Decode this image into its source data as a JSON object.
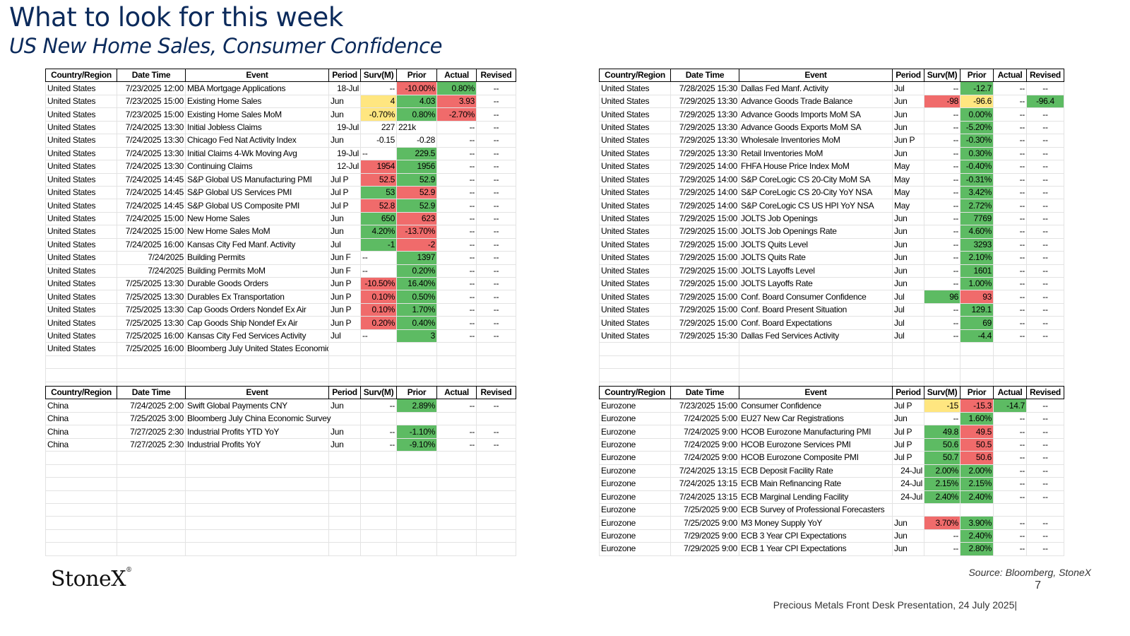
{
  "header": {
    "title": "What to look for this week",
    "subtitle": "US New Home Sales, Consumer Confidence"
  },
  "columns": [
    "Country/Region",
    "Date Time",
    "Event",
    "Period",
    "Surv(M)",
    "Prior",
    "Actual",
    "Revised"
  ],
  "colors": {
    "green": "#5dbb63",
    "red": "#f06b6b",
    "yellow": "#ffe680",
    "title": "#0b2a5b"
  },
  "tables": [
    {
      "id": "us-left",
      "rows": [
        {
          "country": "United States",
          "datetime": "7/23/2025 12:00",
          "event": "MBA Mortgage Applications",
          "period": "18-Jul",
          "periodAlign": "r",
          "surv": "--",
          "prior": "-10.00%",
          "actual": "0.80%",
          "revised": "--",
          "priorColor": "red",
          "actualColor": "green"
        },
        {
          "country": "United States",
          "datetime": "7/23/2025 15:00",
          "event": "Existing Home Sales",
          "period": "Jun",
          "surv": "4",
          "prior": "4.03",
          "actual": "3.93",
          "revised": "--",
          "survColor": "yellow",
          "priorColor": "green",
          "actualColor": "red"
        },
        {
          "country": "United States",
          "datetime": "7/23/2025 15:00",
          "event": "Existing Home Sales MoM",
          "period": "Jun",
          "surv": "-0.70%",
          "prior": "0.80%",
          "actual": "-2.70%",
          "revised": "--",
          "survColor": "yellow",
          "priorColor": "green",
          "actualColor": "red"
        },
        {
          "country": "United States",
          "datetime": "7/24/2025 13:30",
          "event": "Initial Jobless Claims",
          "period": "19-Jul",
          "periodAlign": "r",
          "surv": "227",
          "prior": "221k",
          "priorAlign": "l",
          "actual": "--",
          "revised": "--"
        },
        {
          "country": "United States",
          "datetime": "7/24/2025 13:30",
          "event": "Chicago Fed Nat Activity Index",
          "period": "Jun",
          "surv": "-0.15",
          "prior": "-0.28",
          "actual": "--",
          "revised": "--"
        },
        {
          "country": "United States",
          "datetime": "7/24/2025 13:30",
          "event": "Initial Claims 4-Wk Moving Avg",
          "period": "19-Jul",
          "periodAlign": "r",
          "surv": "--",
          "survAlign": "l",
          "prior": "229.5",
          "actual": "--",
          "revised": "--",
          "priorColor": "green"
        },
        {
          "country": "United States",
          "datetime": "7/24/2025 13:30",
          "event": "Continuing Claims",
          "period": "12-Jul",
          "periodAlign": "r",
          "surv": "1954",
          "prior": "1956",
          "actual": "--",
          "revised": "--",
          "survColor": "red",
          "priorColor": "green"
        },
        {
          "country": "United States",
          "datetime": "7/24/2025 14:45",
          "event": "S&P Global US Manufacturing PMI",
          "period": "Jul P",
          "surv": "52.5",
          "prior": "52.9",
          "actual": "--",
          "revised": "--",
          "survColor": "red",
          "priorColor": "green"
        },
        {
          "country": "United States",
          "datetime": "7/24/2025 14:45",
          "event": "S&P Global US Services PMI",
          "period": "Jul P",
          "surv": "53",
          "prior": "52.9",
          "actual": "--",
          "revised": "--",
          "survColor": "green",
          "priorColor": "red"
        },
        {
          "country": "United States",
          "datetime": "7/24/2025 14:45",
          "event": "S&P Global US Composite PMI",
          "period": "Jul P",
          "surv": "52.8",
          "prior": "52.9",
          "actual": "--",
          "revised": "--",
          "survColor": "red",
          "priorColor": "green"
        },
        {
          "country": "United States",
          "datetime": "7/24/2025 15:00",
          "event": "New Home Sales",
          "period": "Jun",
          "surv": "650",
          "prior": "623",
          "actual": "--",
          "revised": "--",
          "survColor": "green",
          "priorColor": "red"
        },
        {
          "country": "United States",
          "datetime": "7/24/2025 15:00",
          "event": "New Home Sales MoM",
          "period": "Jun",
          "surv": "4.20%",
          "prior": "-13.70%",
          "actual": "--",
          "revised": "--",
          "survColor": "green",
          "priorColor": "red"
        },
        {
          "country": "United States",
          "datetime": "7/24/2025 16:00",
          "event": "Kansas City Fed Manf. Activity",
          "period": "Jul",
          "surv": "-1",
          "prior": "-2",
          "actual": "--",
          "revised": "--",
          "survColor": "green",
          "priorColor": "red"
        },
        {
          "country": "United States",
          "datetime": "7/24/2025",
          "event": "Building Permits",
          "period": "Jun F",
          "surv": "--",
          "survAlign": "l",
          "prior": "1397",
          "actual": "--",
          "revised": "--",
          "priorColor": "green"
        },
        {
          "country": "United States",
          "datetime": "7/24/2025",
          "event": "Building Permits MoM",
          "period": "Jun F",
          "surv": "--",
          "survAlign": "l",
          "prior": "0.20%",
          "actual": "--",
          "revised": "--",
          "priorColor": "green"
        },
        {
          "country": "United States",
          "datetime": "7/25/2025 13:30",
          "event": "Durable Goods Orders",
          "period": "Jun P",
          "surv": "-10.50%",
          "prior": "16.40%",
          "actual": "--",
          "revised": "--",
          "survColor": "red",
          "priorColor": "green"
        },
        {
          "country": "United States",
          "datetime": "7/25/2025 13:30",
          "event": "Durables Ex Transportation",
          "period": "Jun P",
          "surv": "0.10%",
          "prior": "0.50%",
          "actual": "--",
          "revised": "--",
          "survColor": "red",
          "priorColor": "green"
        },
        {
          "country": "United States",
          "datetime": "7/25/2025 13:30",
          "event": "Cap Goods Orders Nondef Ex Air",
          "period": "Jun P",
          "surv": "0.10%",
          "prior": "1.70%",
          "actual": "--",
          "revised": "--",
          "survColor": "red",
          "priorColor": "green"
        },
        {
          "country": "United States",
          "datetime": "7/25/2025 13:30",
          "event": "Cap Goods Ship Nondef Ex Air",
          "period": "Jun P",
          "surv": "0.20%",
          "prior": "0.40%",
          "actual": "--",
          "revised": "--",
          "survColor": "red",
          "priorColor": "green"
        },
        {
          "country": "United States",
          "datetime": "7/25/2025 16:00",
          "event": "Kansas City Fed Services Activity",
          "period": "Jul",
          "surv": "--",
          "survAlign": "l",
          "prior": "3",
          "actual": "--",
          "revised": "--",
          "priorColor": "green"
        },
        {
          "country": "United States",
          "datetime": "7/25/2025 16:00",
          "event": "Bloomberg July United States Economic Surve",
          "period": "",
          "surv": "",
          "prior": "",
          "actual": "",
          "revised": ""
        }
      ],
      "blankRows": 3
    },
    {
      "id": "us-right",
      "rows": [
        {
          "country": "United States",
          "datetime": "7/28/2025 15:30",
          "event": "Dallas Fed Manf. Activity",
          "period": "Jul",
          "surv": "--",
          "prior": "-12.7",
          "actual": "--",
          "revised": "--",
          "priorColor": "green"
        },
        {
          "country": "United States",
          "datetime": "7/29/2025 13:30",
          "event": "Advance Goods Trade Balance",
          "period": "Jun",
          "surv": "-98",
          "prior": "-96.6",
          "actual": "--",
          "revised": "-96.4",
          "survColor": "red",
          "priorColor": "yellow",
          "revisedColor": "green"
        },
        {
          "country": "United States",
          "datetime": "7/29/2025 13:30",
          "event": "Advance Goods Imports MoM SA",
          "period": "Jun",
          "surv": "--",
          "prior": "0.00%",
          "actual": "--",
          "revised": "--",
          "priorColor": "green"
        },
        {
          "country": "United States",
          "datetime": "7/29/2025 13:30",
          "event": "Advance Goods Exports MoM SA",
          "period": "Jun",
          "surv": "--",
          "prior": "-5.20%",
          "actual": "--",
          "revised": "--",
          "priorColor": "green"
        },
        {
          "country": "United States",
          "datetime": "7/29/2025 13:30",
          "event": "Wholesale Inventories MoM",
          "period": "Jun P",
          "surv": "--",
          "prior": "-0.30%",
          "actual": "--",
          "revised": "--",
          "priorColor": "green"
        },
        {
          "country": "United States",
          "datetime": "7/29/2025 13:30",
          "event": "Retail Inventories MoM",
          "period": "Jun",
          "surv": "--",
          "prior": "0.30%",
          "actual": "--",
          "revised": "--",
          "priorColor": "green"
        },
        {
          "country": "United States",
          "datetime": "7/29/2025 14:00",
          "event": "FHFA House Price Index MoM",
          "period": "May",
          "surv": "--",
          "prior": "-0.40%",
          "actual": "--",
          "revised": "--",
          "priorColor": "green"
        },
        {
          "country": "United States",
          "datetime": "7/29/2025 14:00",
          "event": "S&P CoreLogic CS 20-City MoM SA",
          "period": "May",
          "surv": "--",
          "prior": "-0.31%",
          "actual": "--",
          "revised": "--",
          "priorColor": "green"
        },
        {
          "country": "United States",
          "datetime": "7/29/2025 14:00",
          "event": "S&P CoreLogic CS 20-City YoY NSA",
          "period": "May",
          "surv": "--",
          "prior": "3.42%",
          "actual": "--",
          "revised": "--",
          "priorColor": "green"
        },
        {
          "country": "United States",
          "datetime": "7/29/2025 14:00",
          "event": "S&P CoreLogic CS US HPI YoY NSA",
          "period": "May",
          "surv": "--",
          "prior": "2.72%",
          "actual": "--",
          "revised": "--",
          "priorColor": "green"
        },
        {
          "country": "United States",
          "datetime": "7/29/2025 15:00",
          "event": "JOLTS Job Openings",
          "period": "Jun",
          "surv": "--",
          "prior": "7769",
          "actual": "--",
          "revised": "--",
          "priorColor": "green"
        },
        {
          "country": "United States",
          "datetime": "7/29/2025 15:00",
          "event": "JOLTS Job Openings Rate",
          "period": "Jun",
          "surv": "--",
          "prior": "4.60%",
          "actual": "--",
          "revised": "--",
          "priorColor": "green"
        },
        {
          "country": "United States",
          "datetime": "7/29/2025 15:00",
          "event": "JOLTS Quits Level",
          "period": "Jun",
          "surv": "--",
          "prior": "3293",
          "actual": "--",
          "revised": "--",
          "priorColor": "green"
        },
        {
          "country": "United States",
          "datetime": "7/29/2025 15:00",
          "event": "JOLTS Quits Rate",
          "period": "Jun",
          "surv": "--",
          "prior": "2.10%",
          "actual": "--",
          "revised": "--",
          "priorColor": "green"
        },
        {
          "country": "United States",
          "datetime": "7/29/2025 15:00",
          "event": "JOLTS Layoffs Level",
          "period": "Jun",
          "surv": "--",
          "prior": "1601",
          "actual": "--",
          "revised": "--",
          "priorColor": "green"
        },
        {
          "country": "United States",
          "datetime": "7/29/2025 15:00",
          "event": "JOLTS Layoffs Rate",
          "period": "Jun",
          "surv": "--",
          "prior": "1.00%",
          "actual": "--",
          "revised": "--",
          "priorColor": "green"
        },
        {
          "country": "United States",
          "datetime": "7/29/2025 15:00",
          "event": "Conf. Board Consumer Confidence",
          "period": "Jul",
          "surv": "96",
          "prior": "93",
          "actual": "--",
          "revised": "--",
          "survColor": "green",
          "priorColor": "red"
        },
        {
          "country": "United States",
          "datetime": "7/29/2025 15:00",
          "event": "Conf. Board Present Situation",
          "period": "Jul",
          "surv": "--",
          "prior": "129.1",
          "actual": "--",
          "revised": "--",
          "priorColor": "green"
        },
        {
          "country": "United States",
          "datetime": "7/29/2025 15:00",
          "event": "Conf. Board Expectations",
          "period": "Jul",
          "surv": "--",
          "prior": "69",
          "actual": "--",
          "revised": "--",
          "priorColor": "green"
        },
        {
          "country": "United States",
          "datetime": "7/29/2025 15:30",
          "event": "Dallas Fed Services Activity",
          "period": "Jul",
          "surv": "--",
          "prior": "-4.4",
          "actual": "--",
          "revised": "--",
          "priorColor": "green"
        }
      ],
      "blankRows": 4
    },
    {
      "id": "china",
      "rows": [
        {
          "country": "China",
          "datetime": "7/24/2025 2:00",
          "event": "Swift Global Payments CNY",
          "period": "Jun",
          "surv": "--",
          "prior": "2.89%",
          "actual": "--",
          "revised": "--",
          "priorColor": "green"
        },
        {
          "country": "China",
          "datetime": "7/25/2025 3:00",
          "event": "Bloomberg July China Economic Survey",
          "eventOverflow": true,
          "period": "",
          "surv": "",
          "prior": "",
          "actual": "",
          "revised": ""
        },
        {
          "country": "China",
          "datetime": "7/27/2025 2:30",
          "event": "Industrial Profits YTD YoY",
          "period": "Jun",
          "surv": "--",
          "prior": "-1.10%",
          "actual": "--",
          "revised": "--",
          "priorColor": "green"
        },
        {
          "country": "China",
          "datetime": "7/27/2025 2:30",
          "event": "Industrial Profits YoY",
          "period": "Jun",
          "surv": "--",
          "prior": "-9.10%",
          "actual": "--",
          "revised": "--",
          "priorColor": "green"
        }
      ],
      "blankRows": 8
    },
    {
      "id": "eurozone",
      "rows": [
        {
          "country": "Eurozone",
          "datetime": "7/23/2025 15:00",
          "event": "Consumer Confidence",
          "period": "Jul P",
          "surv": "-15",
          "prior": "-15.3",
          "actual": "-14.7",
          "revised": "--",
          "survColor": "yellow",
          "priorColor": "red",
          "actualColor": "green"
        },
        {
          "country": "Eurozone",
          "datetime": "7/24/2025 5:00",
          "event": "EU27 New Car Registrations",
          "period": "Jun",
          "surv": "--",
          "prior": "1.60%",
          "actual": "--",
          "revised": "--",
          "priorColor": "green"
        },
        {
          "country": "Eurozone",
          "datetime": "7/24/2025 9:00",
          "event": "HCOB Eurozone Manufacturing PMI",
          "period": "Jul P",
          "surv": "49.8",
          "prior": "49.5",
          "actual": "--",
          "revised": "--",
          "survColor": "green",
          "priorColor": "red"
        },
        {
          "country": "Eurozone",
          "datetime": "7/24/2025 9:00",
          "event": "HCOB Eurozone Services PMI",
          "period": "Jul P",
          "surv": "50.6",
          "prior": "50.5",
          "actual": "--",
          "revised": "--",
          "survColor": "green",
          "priorColor": "red"
        },
        {
          "country": "Eurozone",
          "datetime": "7/24/2025 9:00",
          "event": "HCOB Eurozone Composite PMI",
          "period": "Jul P",
          "surv": "50.7",
          "prior": "50.6",
          "actual": "--",
          "revised": "--",
          "survColor": "green",
          "priorColor": "red"
        },
        {
          "country": "Eurozone",
          "datetime": "7/24/2025 13:15",
          "event": "ECB Deposit Facility Rate",
          "period": "24-Jul",
          "periodAlign": "r",
          "surv": "2.00%",
          "prior": "2.00%",
          "actual": "--",
          "revised": "--",
          "survColor": "green",
          "priorColor": "green"
        },
        {
          "country": "Eurozone",
          "datetime": "7/24/2025 13:15",
          "event": "ECB Main Refinancing Rate",
          "period": "24-Jul",
          "periodAlign": "r",
          "surv": "2.15%",
          "prior": "2.15%",
          "actual": "--",
          "revised": "--",
          "survColor": "green",
          "priorColor": "green"
        },
        {
          "country": "Eurozone",
          "datetime": "7/24/2025 13:15",
          "event": "ECB Marginal Lending Facility",
          "period": "24-Jul",
          "periodAlign": "r",
          "surv": "2.40%",
          "prior": "2.40%",
          "actual": "--",
          "revised": "--",
          "survColor": "green",
          "priorColor": "green"
        },
        {
          "country": "Eurozone",
          "datetime": "7/25/2025 9:00",
          "event": "ECB Survey of Professional Forecasters",
          "eventOverflow": true,
          "period": "",
          "surv": "",
          "prior": "",
          "actual": "",
          "revised": ""
        },
        {
          "country": "Eurozone",
          "datetime": "7/25/2025 9:00",
          "event": "M3 Money Supply YoY",
          "period": "Jun",
          "surv": "3.70%",
          "prior": "3.90%",
          "actual": "--",
          "revised": "--",
          "survColor": "red",
          "priorColor": "green"
        },
        {
          "country": "Eurozone",
          "datetime": "7/29/2025 9:00",
          "event": "ECB 3 Year CPI Expectations",
          "period": "Jun",
          "surv": "--",
          "prior": "2.40%",
          "actual": "--",
          "revised": "--",
          "priorColor": "green"
        },
        {
          "country": "Eurozone",
          "datetime": "7/29/2025 9:00",
          "event": "ECB 1 Year CPI Expectations",
          "period": "Jun",
          "surv": "--",
          "prior": "2.80%",
          "actual": "--",
          "revised": "--",
          "priorColor": "green"
        }
      ],
      "blankRows": 0
    }
  ],
  "footer": {
    "logo": "StoneX",
    "logo_mark": "®",
    "source": "Source: Bloomberg, StoneX",
    "page_number": "7",
    "presentation": "Precious Metals Front Desk Presentation, 24 July 2025|"
  }
}
